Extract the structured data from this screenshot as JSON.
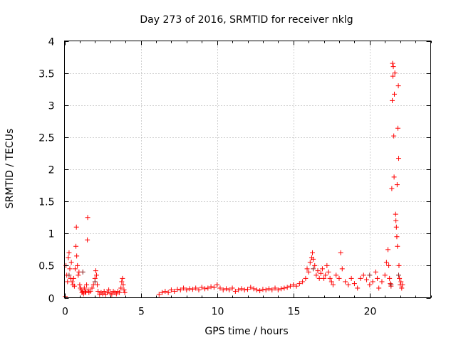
{
  "chart_data": {
    "type": "scatter",
    "title": "Day 273 of 2016, SRMTID for receiver nklg",
    "xlabel": "GPS time / hours",
    "ylabel": "SRMTID / TECUs",
    "xlim": [
      0,
      24
    ],
    "ylim": [
      0,
      4
    ],
    "xticks": [
      0,
      5,
      10,
      15,
      20
    ],
    "xtick_labels": [
      "0",
      "5",
      "10",
      "15",
      "20"
    ],
    "yticks": [
      0,
      0.5,
      1,
      1.5,
      2,
      2.5,
      3,
      3.5,
      4
    ],
    "ytick_labels": [
      "0",
      "0.5",
      "1",
      "1.5",
      "2",
      "2.5",
      "3",
      "3.5",
      "4"
    ],
    "grid": true,
    "marker": "+",
    "series": [
      {
        "name": "red",
        "color": "#ff0000",
        "points": [
          [
            0.05,
            0.02
          ],
          [
            0.1,
            0.5
          ],
          [
            0.15,
            0.35
          ],
          [
            0.2,
            0.25
          ],
          [
            0.25,
            0.62
          ],
          [
            0.3,
            0.7
          ],
          [
            0.35,
            0.45
          ],
          [
            0.4,
            0.3
          ],
          [
            0.45,
            0.55
          ],
          [
            0.5,
            0.25
          ],
          [
            0.55,
            0.2
          ],
          [
            0.6,
            0.3
          ],
          [
            0.65,
            0.18
          ],
          [
            0.7,
            0.45
          ],
          [
            0.75,
            0.8
          ],
          [
            0.78,
            1.1
          ],
          [
            0.8,
            0.65
          ],
          [
            0.85,
            0.5
          ],
          [
            0.9,
            0.35
          ],
          [
            0.95,
            0.4
          ],
          [
            1.0,
            0.2
          ],
          [
            1.05,
            0.15
          ],
          [
            1.1,
            0.12
          ],
          [
            1.15,
            0.08
          ],
          [
            1.2,
            0.1
          ],
          [
            1.25,
            0.06
          ],
          [
            1.3,
            0.15
          ],
          [
            1.35,
            0.1
          ],
          [
            1.4,
            0.08
          ],
          [
            1.45,
            0.2
          ],
          [
            1.5,
            0.9
          ],
          [
            1.52,
            1.25
          ],
          [
            1.55,
            0.12
          ],
          [
            1.6,
            0.08
          ],
          [
            1.7,
            0.1
          ],
          [
            1.8,
            0.15
          ],
          [
            1.9,
            0.2
          ],
          [
            2.0,
            0.3
          ],
          [
            2.05,
            0.42
          ],
          [
            2.1,
            0.35
          ],
          [
            2.15,
            0.2
          ],
          [
            2.2,
            0.1
          ],
          [
            2.3,
            0.05
          ],
          [
            2.4,
            0.08
          ],
          [
            2.5,
            0.06
          ],
          [
            2.6,
            0.1
          ],
          [
            2.7,
            0.05
          ],
          [
            2.8,
            0.08
          ],
          [
            2.9,
            0.12
          ],
          [
            3.0,
            0.07
          ],
          [
            3.1,
            0.05
          ],
          [
            3.2,
            0.1
          ],
          [
            3.3,
            0.08
          ],
          [
            3.4,
            0.06
          ],
          [
            3.5,
            0.1
          ],
          [
            3.6,
            0.08
          ],
          [
            3.7,
            0.15
          ],
          [
            3.75,
            0.25
          ],
          [
            3.8,
            0.3
          ],
          [
            3.85,
            0.2
          ],
          [
            3.9,
            0.12
          ],
          [
            3.95,
            0.08
          ],
          [
            6.2,
            0.05
          ],
          [
            6.4,
            0.08
          ],
          [
            6.6,
            0.1
          ],
          [
            6.8,
            0.08
          ],
          [
            7.0,
            0.12
          ],
          [
            7.2,
            0.1
          ],
          [
            7.4,
            0.13
          ],
          [
            7.6,
            0.12
          ],
          [
            7.8,
            0.15
          ],
          [
            8.0,
            0.12
          ],
          [
            8.2,
            0.14
          ],
          [
            8.4,
            0.13
          ],
          [
            8.6,
            0.15
          ],
          [
            8.8,
            0.12
          ],
          [
            9.0,
            0.16
          ],
          [
            9.2,
            0.14
          ],
          [
            9.4,
            0.15
          ],
          [
            9.6,
            0.17
          ],
          [
            9.8,
            0.16
          ],
          [
            10.0,
            0.2
          ],
          [
            10.2,
            0.15
          ],
          [
            10.4,
            0.12
          ],
          [
            10.6,
            0.14
          ],
          [
            10.8,
            0.12
          ],
          [
            11.0,
            0.15
          ],
          [
            11.2,
            0.1
          ],
          [
            11.4,
            0.12
          ],
          [
            11.6,
            0.14
          ],
          [
            11.8,
            0.12
          ],
          [
            12.0,
            0.13
          ],
          [
            12.2,
            0.16
          ],
          [
            12.4,
            0.14
          ],
          [
            12.6,
            0.12
          ],
          [
            12.8,
            0.11
          ],
          [
            13.0,
            0.13
          ],
          [
            13.2,
            0.12
          ],
          [
            13.4,
            0.14
          ],
          [
            13.6,
            0.12
          ],
          [
            13.8,
            0.15
          ],
          [
            14.0,
            0.12
          ],
          [
            14.2,
            0.14
          ],
          [
            14.4,
            0.15
          ],
          [
            14.6,
            0.16
          ],
          [
            14.8,
            0.18
          ],
          [
            15.0,
            0.2
          ],
          [
            15.2,
            0.18
          ],
          [
            15.4,
            0.22
          ],
          [
            15.6,
            0.25
          ],
          [
            15.8,
            0.3
          ],
          [
            15.9,
            0.45
          ],
          [
            16.0,
            0.4
          ],
          [
            16.1,
            0.55
          ],
          [
            16.2,
            0.62
          ],
          [
            16.25,
            0.7
          ],
          [
            16.3,
            0.6
          ],
          [
            16.4,
            0.5
          ],
          [
            16.5,
            0.35
          ],
          [
            16.6,
            0.42
          ],
          [
            16.7,
            0.3
          ],
          [
            16.8,
            0.38
          ],
          [
            16.9,
            0.45
          ],
          [
            17.0,
            0.3
          ],
          [
            17.1,
            0.35
          ],
          [
            17.2,
            0.5
          ],
          [
            17.3,
            0.4
          ],
          [
            17.4,
            0.3
          ],
          [
            17.5,
            0.25
          ],
          [
            17.6,
            0.2
          ],
          [
            17.8,
            0.35
          ],
          [
            18.0,
            0.3
          ],
          [
            18.1,
            0.7
          ],
          [
            18.2,
            0.45
          ],
          [
            18.4,
            0.25
          ],
          [
            18.6,
            0.2
          ],
          [
            18.8,
            0.3
          ],
          [
            19.0,
            0.22
          ],
          [
            19.2,
            0.15
          ],
          [
            19.4,
            0.3
          ],
          [
            19.6,
            0.35
          ],
          [
            19.8,
            0.28
          ],
          [
            20.0,
            0.2
          ],
          [
            20.2,
            0.25
          ],
          [
            20.4,
            0.4
          ],
          [
            20.5,
            0.3
          ],
          [
            20.6,
            0.15
          ],
          [
            20.8,
            0.25
          ],
          [
            21.0,
            0.35
          ],
          [
            21.1,
            0.55
          ],
          [
            21.2,
            0.75
          ],
          [
            21.25,
            0.5
          ],
          [
            21.3,
            0.3
          ],
          [
            21.35,
            0.22
          ],
          [
            21.4,
            0.18
          ],
          [
            21.45,
            1.7
          ],
          [
            21.48,
            3.07
          ],
          [
            21.5,
            3.65
          ],
          [
            21.52,
            3.45
          ],
          [
            21.55,
            3.6
          ],
          [
            21.58,
            2.52
          ],
          [
            21.6,
            1.88
          ],
          [
            21.62,
            3.17
          ],
          [
            21.65,
            3.5
          ],
          [
            21.7,
            1.3
          ],
          [
            21.72,
            1.2
          ],
          [
            21.75,
            1.1
          ],
          [
            21.78,
            0.95
          ],
          [
            21.8,
            1.76
          ],
          [
            21.82,
            0.8
          ],
          [
            21.85,
            2.64
          ],
          [
            21.88,
            3.3
          ],
          [
            21.9,
            2.17
          ],
          [
            21.92,
            0.5
          ],
          [
            21.95,
            0.3
          ],
          [
            22.0,
            0.2
          ],
          [
            22.05,
            0.25
          ],
          [
            22.1,
            0.15
          ],
          [
            22.15,
            0.2
          ]
        ]
      },
      {
        "name": "dark",
        "color": "#8b2020",
        "points": [
          [
            0.3,
            0.35
          ],
          [
            1.2,
            0.4
          ],
          [
            2.0,
            0.25
          ],
          [
            16.3,
            0.45
          ],
          [
            20.0,
            0.35
          ],
          [
            21.4,
            0.2
          ],
          [
            21.9,
            0.35
          ]
        ]
      }
    ]
  }
}
